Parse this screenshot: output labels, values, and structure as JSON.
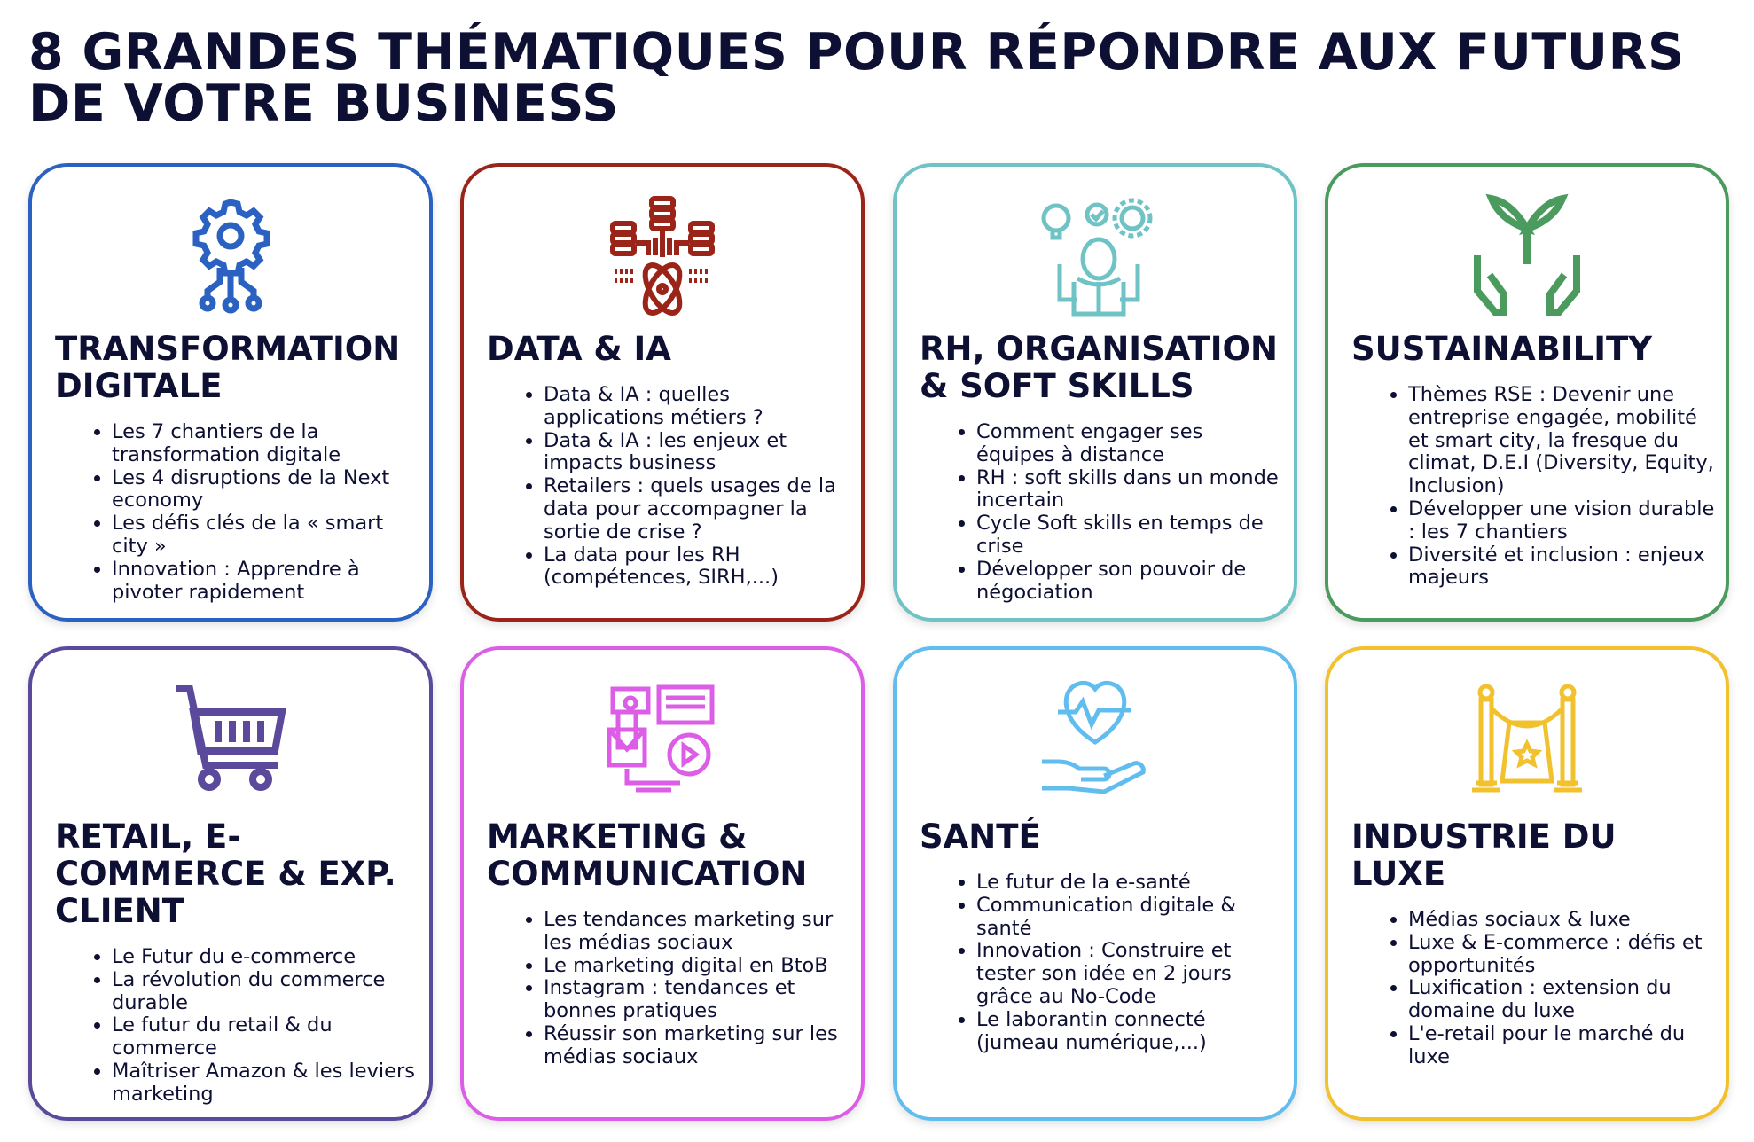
{
  "title": "8 GRANDES THÉMATIQUES POUR RÉPONDRE AUX FUTURS DE VOTRE BUSINESS",
  "cards": [
    {
      "heading": "TRANSFORMATION DIGITALE",
      "color": "#2b62c2",
      "icon": "gear-circuit-icon",
      "items": [
        "Les 7 chantiers de la transformation digitale",
        "Les 4 disruptions de la Next economy",
        "Les défis clés de la « smart city »",
        "Innovation : Apprendre à pivoter rapidement"
      ]
    },
    {
      "heading": "DATA & IA",
      "color": "#9a2418",
      "icon": "database-atom-icon",
      "items": [
        "Data & IA : quelles applications métiers ?",
        "Data & IA : les enjeux et impacts business",
        "Retailers : quels usages de la data pour accompagner la sortie de crise ?",
        "La data pour les RH (compétences, SIRH,...)"
      ]
    },
    {
      "heading": "RH, ORGANISATION & SOFT SKILLS",
      "color": "#6fc3c4",
      "icon": "person-ideas-icon",
      "items": [
        "Comment engager ses équipes à distance",
        "RH : soft skills dans un monde incertain",
        "Cycle Soft skills en temps de crise",
        "Développer son pouvoir de négociation"
      ]
    },
    {
      "heading": "SUSTAINABILITY",
      "color": "#4c9b5e",
      "icon": "hands-plant-icon",
      "items": [
        "Thèmes RSE : Devenir une entreprise engagée, mobilité et smart city, la fresque du climat, D.E.I (Diversity, Equity, Inclusion)",
        "Développer une vision durable : les 7 chantiers",
        "Diversité et inclusion : enjeux majeurs"
      ]
    },
    {
      "heading": "RETAIL, E-COMMERCE & EXP. CLIENT",
      "color": "#5b4a9c",
      "icon": "shopping-cart-icon",
      "items": [
        "Le Futur du e-commerce",
        "La révolution du commerce durable",
        "Le futur du retail & du commerce",
        "Maîtriser Amazon & les leviers marketing"
      ]
    },
    {
      "heading": "MARKETING & COMMUNICATION",
      "color": "#dd5ee6",
      "icon": "media-marketing-icon",
      "items": [
        "Les tendances marketing sur les médias sociaux",
        "Le marketing digital en BtoB",
        "Instagram : tendances et bonnes pratiques",
        "Réussir son marketing sur les médias sociaux"
      ]
    },
    {
      "heading": "SANTÉ",
      "color": "#62bdef",
      "icon": "heart-hand-icon",
      "items": [
        "Le futur de la e-santé",
        "Communication digitale & santé",
        "Innovation : Construire et tester son idée en 2 jours grâce au No-Code",
        "Le laborantin connecté (jumeau numérique,...)"
      ]
    },
    {
      "heading": "INDUSTRIE DU LUXE",
      "color": "#f2c12e",
      "icon": "luxury-rope-icon",
      "items": [
        "Médias sociaux & luxe",
        "Luxe & E-commerce : défis et opportunités",
        "Luxification : extension du domaine du luxe",
        "L'e-retail pour le marché du luxe"
      ]
    }
  ]
}
